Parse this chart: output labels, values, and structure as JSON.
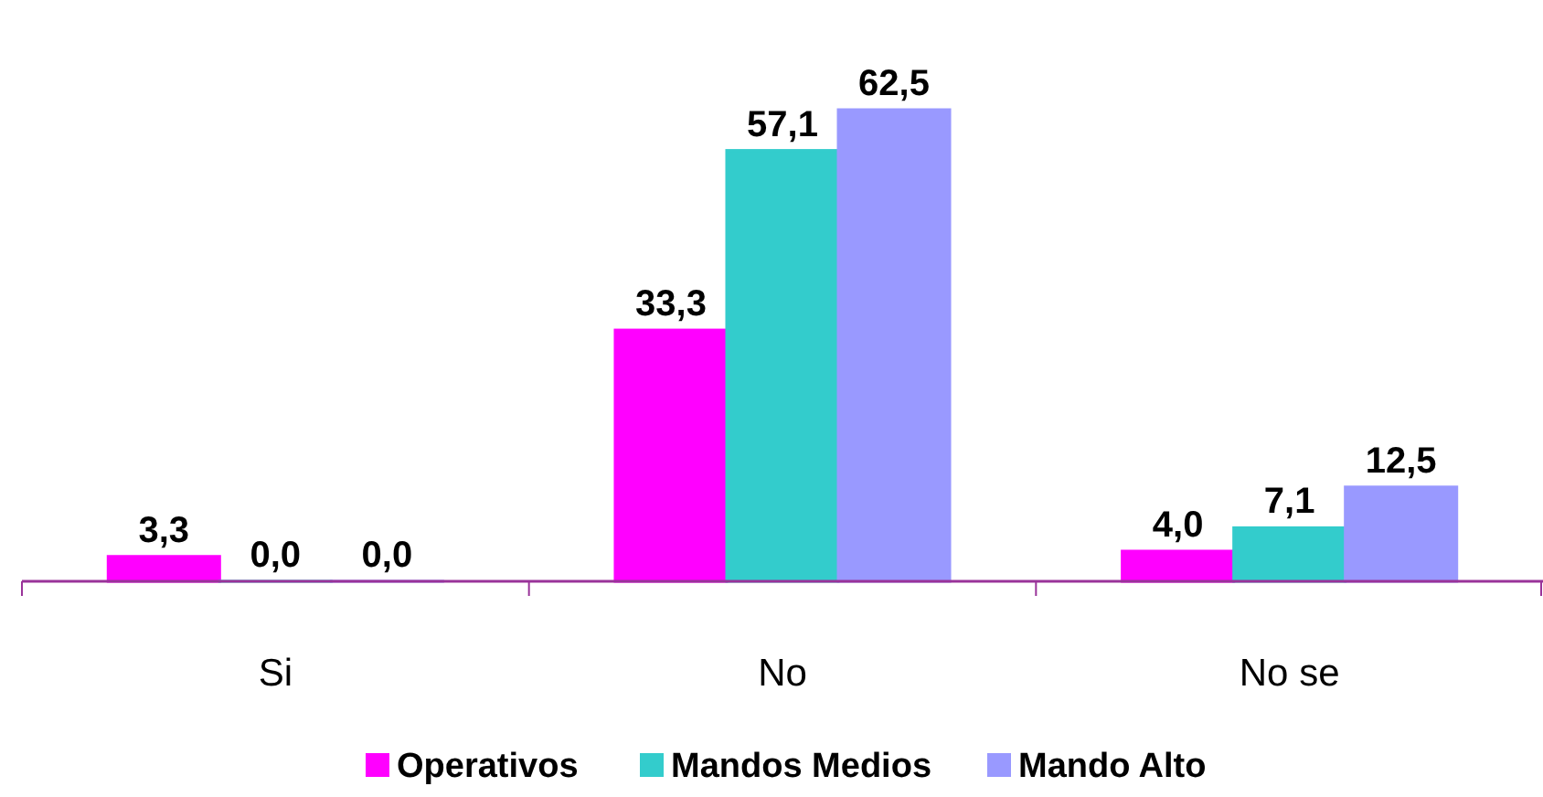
{
  "chart_data": {
    "type": "bar",
    "categories": [
      "Si",
      "No",
      "No se"
    ],
    "series": [
      {
        "name": "Operativos",
        "color": "#ff00ff",
        "values": [
          3.3,
          33.3,
          4.0
        ],
        "value_labels": [
          "3,3",
          "33,3",
          "4,0"
        ]
      },
      {
        "name": "Mandos Medios",
        "color": "#33cccc",
        "values": [
          0.0,
          57.1,
          7.1
        ],
        "value_labels": [
          "0,0",
          "57,1",
          "7,1"
        ]
      },
      {
        "name": "Mando Alto",
        "color": "#9999ff",
        "values": [
          0.0,
          62.5,
          12.5
        ],
        "value_labels": [
          "0,0",
          "62,5",
          "12,5"
        ]
      }
    ],
    "legend": "bottom"
  }
}
